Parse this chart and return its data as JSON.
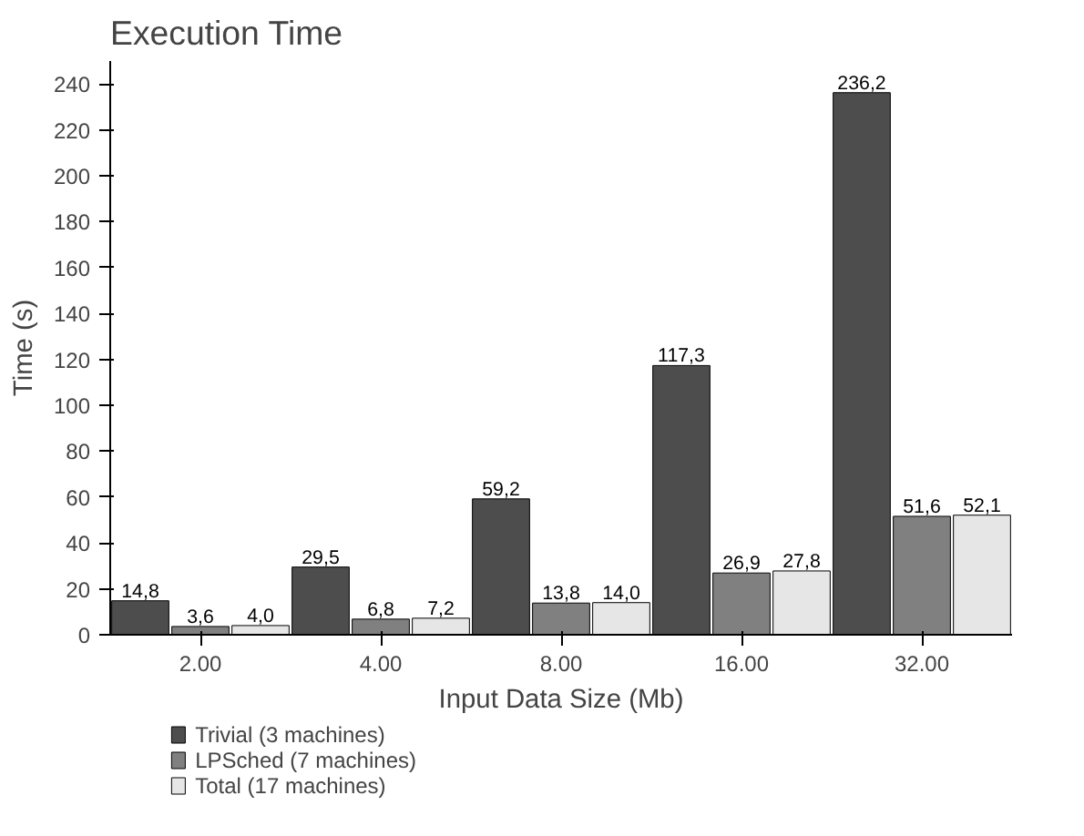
{
  "chart_data": {
    "type": "bar",
    "title": "Execution Time",
    "xlabel": "Input Data Size (Mb)",
    "ylabel": "Time (s)",
    "categories": [
      "2.00",
      "4.00",
      "8.00",
      "16.00",
      "32.00"
    ],
    "series": [
      {
        "name": "Trivial (3 machines)",
        "color": "#4d4d4d",
        "values": [
          14.8,
          29.5,
          59.2,
          117.3,
          236.2
        ],
        "value_labels": [
          "14,8",
          "29,5",
          "59,2",
          "117,3",
          "236,2"
        ]
      },
      {
        "name": "LPSched (7 machines)",
        "color": "#808080",
        "values": [
          3.6,
          6.8,
          13.8,
          26.9,
          51.6
        ],
        "value_labels": [
          "3,6",
          "6,8",
          "13,8",
          "26,9",
          "51,6"
        ]
      },
      {
        "name": "Total (17 machines)",
        "color": "#e6e6e6",
        "values": [
          4.0,
          7.2,
          14.0,
          27.8,
          52.1
        ],
        "value_labels": [
          "4,0",
          "7,2",
          "14,0",
          "27,8",
          "52,1"
        ]
      }
    ],
    "ylim": [
      0,
      250
    ],
    "yticks": [
      0,
      20,
      40,
      60,
      80,
      100,
      120,
      140,
      160,
      180,
      200,
      220,
      240
    ],
    "legend": "bottom"
  }
}
